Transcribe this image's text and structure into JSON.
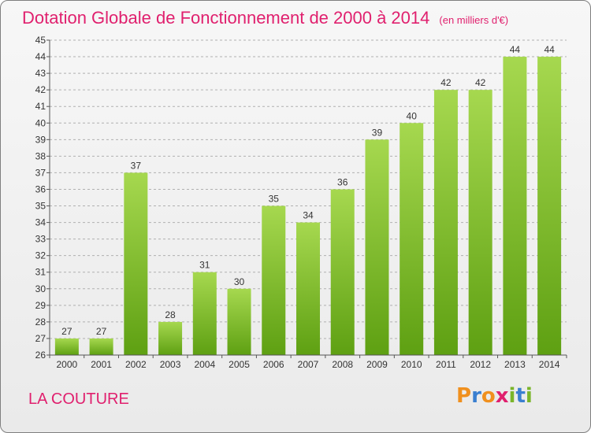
{
  "header": {
    "title": "Dotation Globale de Fonctionnement de 2000 à 2014",
    "subtitle": "(en milliers d'€)"
  },
  "footer": {
    "commune": "LA COUTURE",
    "logo": "Proxiti"
  },
  "colors": {
    "title": "#e0206e",
    "bar_top": "#a6d84f",
    "bar_bottom": "#5ea012",
    "grid": "#b0b0b0",
    "axis_text": "#333333",
    "logo_letters": [
      "#f0901e",
      "#3a7fd0",
      "#f0901e",
      "#e0206e",
      "#7ab52a",
      "#3a7fd0",
      "#7ab52a"
    ]
  },
  "chart_data": {
    "type": "bar",
    "title": "Dotation Globale de Fonctionnement de 2000 à 2014",
    "subtitle": "(en milliers d'€)",
    "categories": [
      "2000",
      "2001",
      "2002",
      "2003",
      "2004",
      "2005",
      "2006",
      "2007",
      "2008",
      "2009",
      "2010",
      "2011",
      "2012",
      "2013",
      "2014"
    ],
    "values": [
      27,
      27,
      37,
      28,
      31,
      30,
      35,
      34,
      36,
      39,
      40,
      42,
      42,
      44,
      44
    ],
    "ylim": [
      26,
      45
    ],
    "yticks": [
      26,
      27,
      28,
      29,
      30,
      31,
      32,
      33,
      34,
      35,
      36,
      37,
      38,
      39,
      40,
      41,
      42,
      43,
      44,
      45
    ],
    "grid": true,
    "xlabel": "",
    "ylabel": ""
  }
}
